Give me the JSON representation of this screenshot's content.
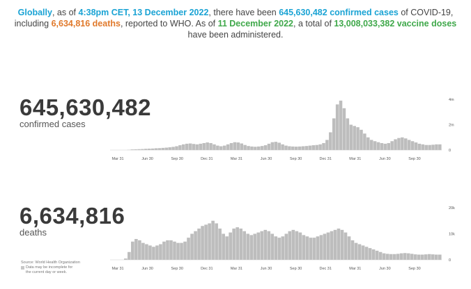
{
  "summary": {
    "w1": "Globally",
    "w2": ", as of ",
    "w3": "4:38pm CET, 13 December 2022",
    "w4": ", there have been ",
    "w5": "645,630,482 confirmed cases",
    "w6": " of COVID-19,",
    "w7": "including ",
    "w8": "6,634,816 deaths",
    "w9": ", reported to WHO. As of ",
    "w10": "11 December 2022",
    "w11": ", a total of ",
    "w12": "13,008,033,382 vaccine doses",
    "w13": "have been administered."
  },
  "cases": {
    "number": "645,630,482",
    "label": "confirmed cases"
  },
  "deaths": {
    "number": "6,634,816",
    "label": "deaths"
  },
  "source": {
    "line1": "Source: World Health Organization",
    "note": "Data may be incomplete for the current day or week."
  },
  "colors": {
    "bar": "#bdbdbd",
    "blue": "#1aa3d4",
    "orange": "#e0792b",
    "green": "#3fa84a"
  },
  "chart_data": [
    {
      "type": "bar",
      "title": "",
      "series": [
        {
          "values": [
            0,
            0,
            0,
            0,
            0,
            0.02,
            0.05,
            0.06,
            0.07,
            0.08,
            0.1,
            0.11,
            0.12,
            0.14,
            0.15,
            0.17,
            0.19,
            0.22,
            0.25,
            0.3,
            0.38,
            0.45,
            0.5,
            0.52,
            0.48,
            0.45,
            0.5,
            0.55,
            0.6,
            0.55,
            0.45,
            0.35,
            0.3,
            0.35,
            0.45,
            0.55,
            0.62,
            0.6,
            0.52,
            0.4,
            0.32,
            0.28,
            0.26,
            0.28,
            0.32,
            0.38,
            0.5,
            0.62,
            0.65,
            0.58,
            0.45,
            0.35,
            0.3,
            0.28,
            0.27,
            0.28,
            0.3,
            0.32,
            0.35,
            0.38,
            0.4,
            0.45,
            0.55,
            0.8,
            1.4,
            2.5,
            3.6,
            3.9,
            3.3,
            2.5,
            2.0,
            1.9,
            1.8,
            1.6,
            1.3,
            1.0,
            0.8,
            0.7,
            0.62,
            0.55,
            0.5,
            0.55,
            0.7,
            0.85,
            0.95,
            1.0,
            0.92,
            0.8,
            0.7,
            0.6,
            0.5,
            0.45,
            0.4,
            0.4,
            0.42,
            0.45,
            0.45
          ]
        }
      ],
      "x_tick_labels": [
        "Mar 31",
        "Jun 30",
        "Sep 30",
        "Dec 31",
        "Mar 31",
        "Jun 30",
        "Sep 30",
        "Dec 31",
        "Mar 31",
        "Jun 30",
        "Sep 30"
      ],
      "y_tick_labels": [
        "4m",
        "2m",
        "0"
      ],
      "ylim": [
        0,
        4
      ]
    },
    {
      "type": "bar",
      "title": "",
      "series": [
        {
          "values": [
            0,
            0,
            0,
            0,
            0.5,
            3,
            7,
            8,
            7.5,
            6.5,
            6,
            5.5,
            5,
            5.5,
            6,
            7,
            7.5,
            7.5,
            7,
            6.5,
            6.5,
            7,
            8.5,
            10,
            11,
            12,
            13,
            13.5,
            14,
            15,
            14,
            12,
            10,
            9,
            10.5,
            12,
            12.5,
            12,
            11,
            10,
            9.5,
            10,
            10.5,
            11,
            11.5,
            11,
            10,
            9,
            8.5,
            9,
            10,
            11,
            11.5,
            11,
            10.5,
            9.5,
            9,
            8.5,
            8.5,
            9,
            9.5,
            10,
            10.5,
            11,
            11.5,
            12,
            11.5,
            10.5,
            9,
            7.5,
            6.5,
            6,
            5.5,
            5,
            4.5,
            4,
            3.5,
            3,
            2.5,
            2.3,
            2.2,
            2.2,
            2.3,
            2.5,
            2.6,
            2.5,
            2.3,
            2.1,
            2,
            2,
            2.1,
            2.2,
            2.1,
            2,
            2
          ]
        }
      ],
      "x_tick_labels": [
        "Mar 31",
        "Jun 30",
        "Sep 30",
        "Dec 31",
        "Mar 31",
        "Jun 30",
        "Sep 30",
        "Dec 31",
        "Mar 31",
        "Jun 30",
        "Sep 30"
      ],
      "y_tick_labels": [
        "20k",
        "10k",
        "0"
      ],
      "ylim": [
        0,
        20
      ]
    }
  ]
}
